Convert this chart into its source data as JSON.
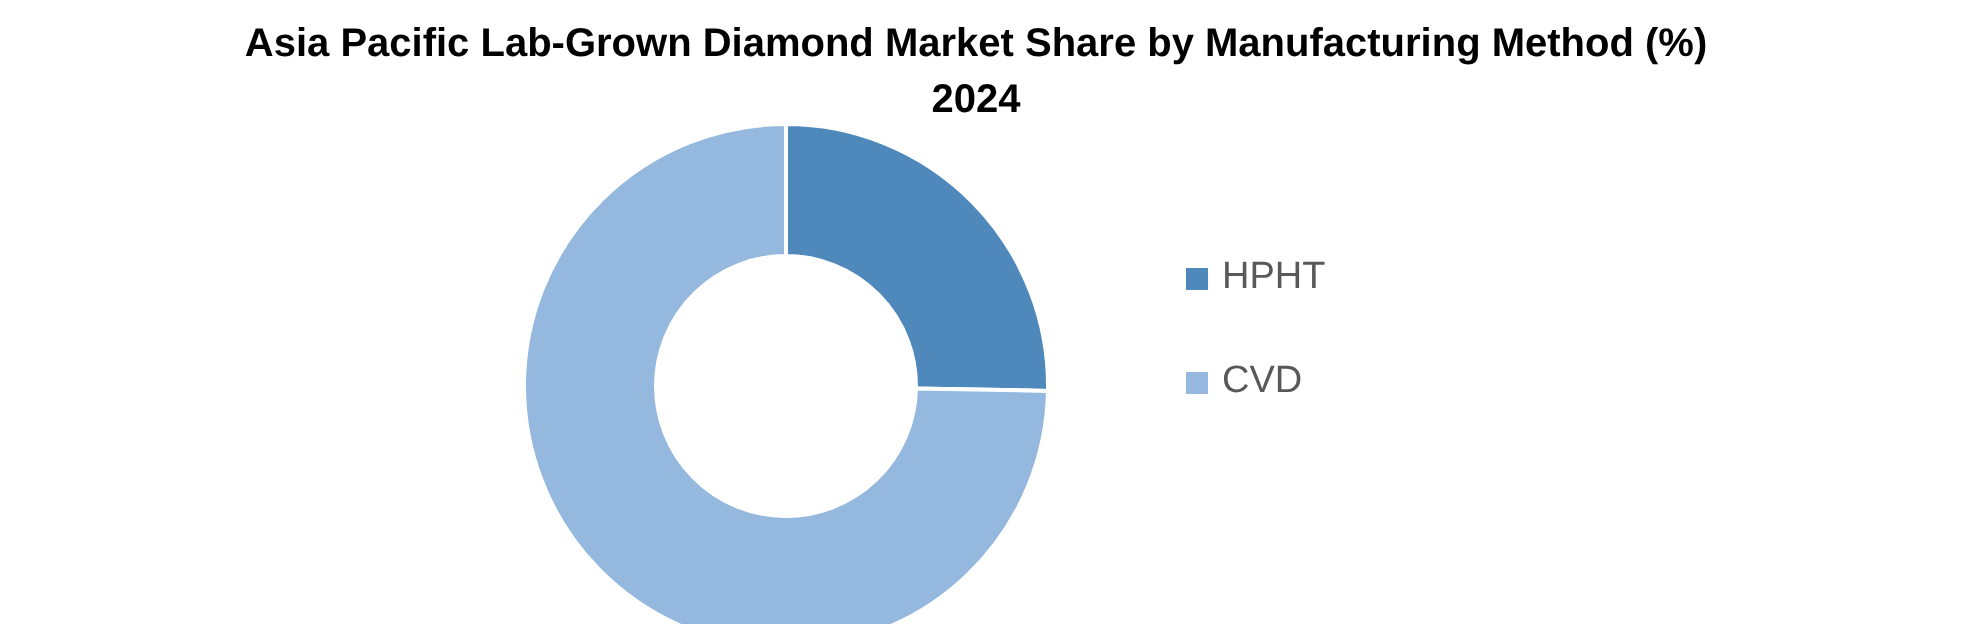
{
  "chart_data": {
    "type": "donut",
    "title": "Asia Pacific Lab-Grown Diamond Market Share by Manufacturing Method (%) 2024",
    "categories": [
      "HPHT",
      "CVD"
    ],
    "values": [
      25.3,
      74.7
    ],
    "colors": [
      "#4f88bb",
      "#95b8de"
    ],
    "legend": "right"
  }
}
